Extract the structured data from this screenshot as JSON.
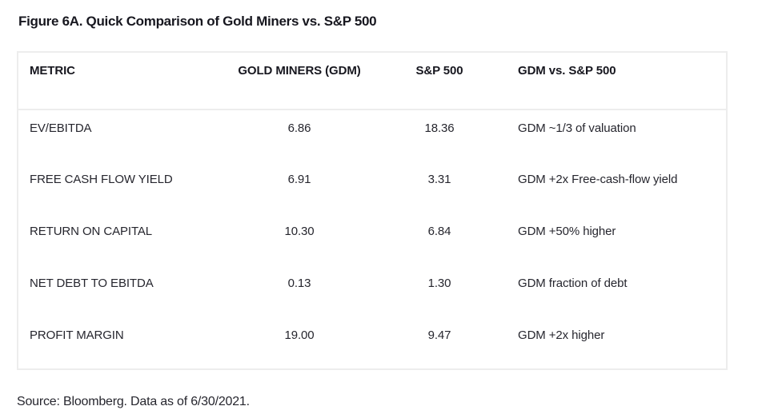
{
  "chart_data": {
    "type": "table",
    "title": "Figure 6A. Quick Comparison of Gold Miners vs. S&P 500",
    "columns": [
      "METRIC",
      "GOLD MINERS (GDM)",
      "S&P 500",
      "GDM vs. S&P 500"
    ],
    "rows": [
      {
        "metric": "EV/EBITDA",
        "gdm": "6.86",
        "sp500": "18.36",
        "comparison": "GDM ~1/3 of valuation"
      },
      {
        "metric": "FREE CASH FLOW YIELD",
        "gdm": "6.91",
        "sp500": "3.31",
        "comparison": "GDM +2x Free-cash-flow yield"
      },
      {
        "metric": "RETURN ON CAPITAL",
        "gdm": "10.30",
        "sp500": "6.84",
        "comparison": "GDM +50% higher"
      },
      {
        "metric": "NET DEBT TO EBITDA",
        "gdm": "0.13",
        "sp500": "1.30",
        "comparison": "GDM fraction of debt"
      },
      {
        "metric": "PROFIT MARGIN",
        "gdm": "19.00",
        "sp500": "9.47",
        "comparison": "GDM +2x higher"
      }
    ],
    "source": "Source: Bloomberg. Data as of 6/30/2021.",
    "layout": {
      "legend": "none",
      "grid": "header-separator-only",
      "value_alignment": "center",
      "text_alignment": "left"
    }
  },
  "colors": {
    "background": "#ffffff",
    "heading_text": "#17171f",
    "body_text": "#26262e",
    "table_border": "#ededed"
  }
}
